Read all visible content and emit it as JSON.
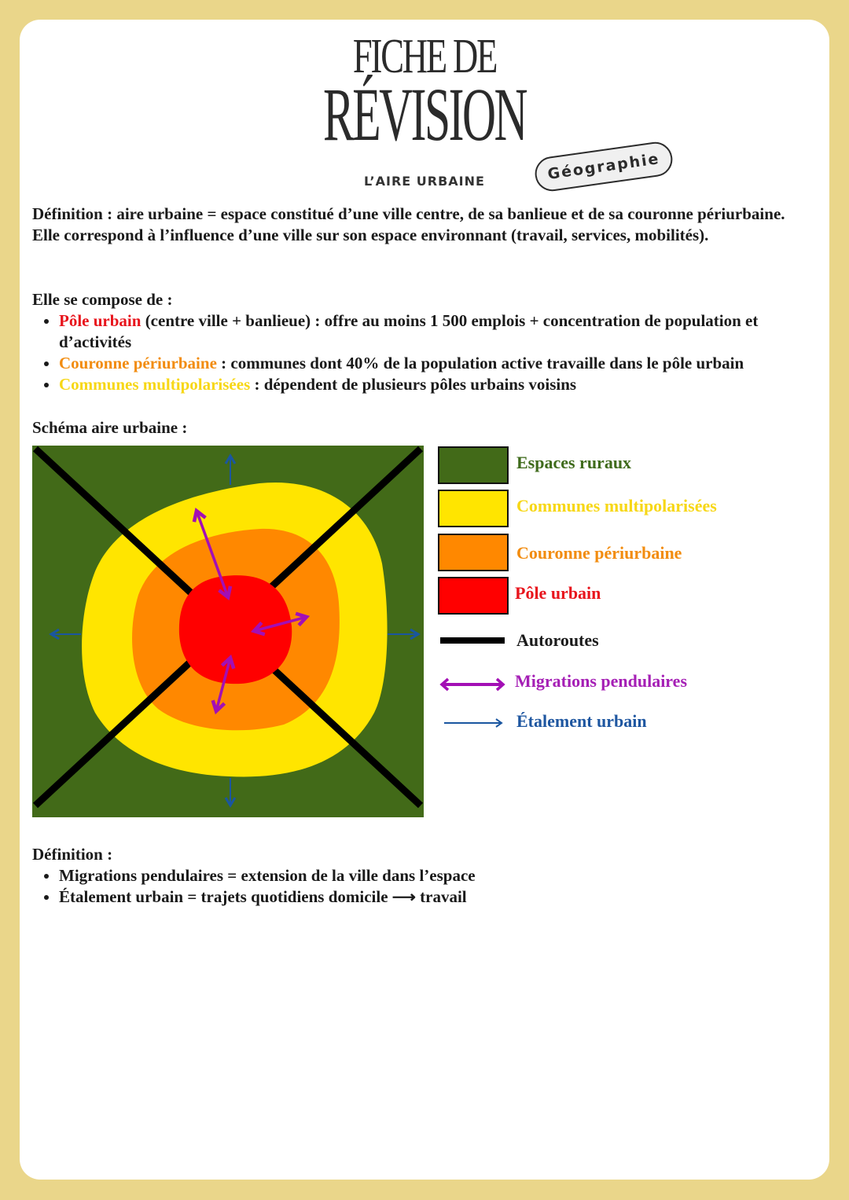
{
  "header": {
    "title_line1": "FICHE DE",
    "title_line2": "RÉVISION",
    "subject_badge": "Géographie",
    "subtitle": "L’AIRE URBAINE"
  },
  "definition1": {
    "text": "Définition : aire urbaine = espace constitué d’une ville centre, de sa banlieue et de sa couronne périurbaine. Elle correspond à l’influence d’une ville sur son espace environnant (travail, services, mobilités)."
  },
  "composition": {
    "intro": "Elle se compose de :",
    "items": [
      {
        "term": "Pôle urbain",
        "rest": " (centre ville + banlieue) : offre au moins 1 500 emplois + concentration de population et d’activités",
        "color": "#e8141c"
      },
      {
        "term": "Couronne périurbaine",
        "rest": " : communes dont 40% de la population active travaille dans le pôle urbain",
        "color": "#f28c0f"
      },
      {
        "term": "Communes multipolarisées",
        "rest": " : dépendent de plusieurs pôles urbains voisins",
        "color": "#f7d716"
      }
    ]
  },
  "schema": {
    "heading": "Schéma aire urbaine :",
    "colors": {
      "rural": "#426a18",
      "multipolar": "#ffe500",
      "periurban": "#ff8800",
      "pole": "#ff0000",
      "highway": "#000000",
      "commute": "#a30fb5",
      "sprawl": "#1a56a0"
    },
    "legend": [
      {
        "label": "Espaces ruraux",
        "icon": "green-swatch",
        "color": "#3f6b1c"
      },
      {
        "label": "Communes multipolarisées",
        "icon": "yellow-swatch",
        "color": "#f7d716"
      },
      {
        "label": "Couronne périurbaine",
        "icon": "orange-swatch",
        "color": "#f28c0f"
      },
      {
        "label": "Pôle urbain",
        "icon": "red-swatch",
        "color": "#e8141c"
      },
      {
        "label": "Autoroutes",
        "icon": "black-line",
        "color": "#1a1a1a"
      },
      {
        "label": "Migrations pendulaires",
        "icon": "double-arrow",
        "color": "#a51fb5"
      },
      {
        "label": "Étalement urbain",
        "icon": "arrow-right",
        "color": "#1e56a0"
      }
    ]
  },
  "definition2": {
    "intro": "Définition :",
    "items": [
      "Migrations pendulaires = extension de la ville dans l’espace",
      "Étalement urbain = trajets quotidiens domicile ⟶ travail"
    ]
  }
}
